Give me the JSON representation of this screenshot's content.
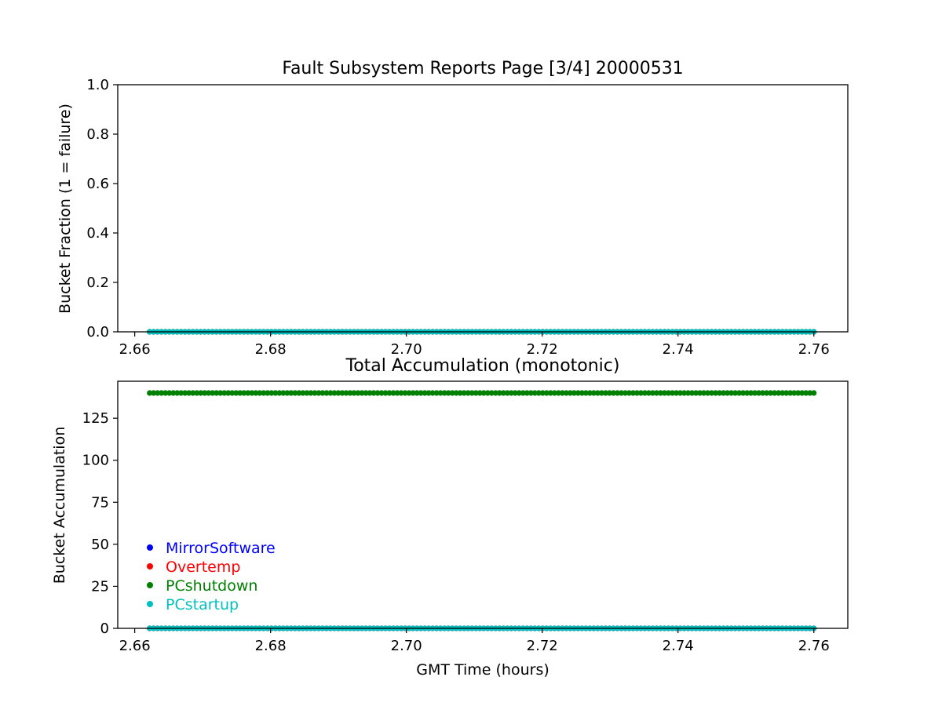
{
  "chart_data": [
    {
      "type": "scatter",
      "title": "Fault Subsystem Reports Page [3/4] 20000531",
      "xlabel": "",
      "ylabel": "Bucket Fraction (1 = failure)",
      "xlim": [
        2.6575,
        2.765
      ],
      "ylim": [
        0,
        1.0
      ],
      "xticks": [
        2.66,
        2.68,
        2.7,
        2.72,
        2.74,
        2.76
      ],
      "xtick_labels": [
        "2.66",
        "2.68",
        "2.70",
        "2.72",
        "2.74",
        "2.76"
      ],
      "yticks": [
        0,
        0.2,
        0.4,
        0.6,
        0.8,
        1.0
      ],
      "ytick_labels": [
        "0.0",
        "0.2",
        "0.4",
        "0.6",
        "0.8",
        "1.0"
      ],
      "grid": false,
      "x_range": [
        2.6622,
        2.76
      ],
      "series": [
        {
          "name": "MirrorSoftware",
          "color": "#0000ff",
          "value": 0
        },
        {
          "name": "Overtemp",
          "color": "#ff0000",
          "value": 0
        },
        {
          "name": "PCshutdown",
          "color": "#008000",
          "value": 0
        },
        {
          "name": "PCstartup",
          "color": "#00bfbf",
          "value": 0
        }
      ]
    },
    {
      "type": "scatter",
      "title": "Total Accumulation (monotonic)",
      "xlabel": "GMT Time (hours)",
      "ylabel": "Bucket Accumulation",
      "xlim": [
        2.6575,
        2.765
      ],
      "ylim": [
        0,
        147
      ],
      "xticks": [
        2.66,
        2.68,
        2.7,
        2.72,
        2.74,
        2.76
      ],
      "xtick_labels": [
        "2.66",
        "2.68",
        "2.70",
        "2.72",
        "2.74",
        "2.76"
      ],
      "yticks": [
        0,
        25,
        50,
        75,
        100,
        125
      ],
      "ytick_labels": [
        "0",
        "25",
        "50",
        "75",
        "100",
        "125"
      ],
      "grid": false,
      "legend_position": "lower-left",
      "x_range": [
        2.6622,
        2.76
      ],
      "series": [
        {
          "name": "MirrorSoftware",
          "color": "#0000ff",
          "value": 0
        },
        {
          "name": "Overtemp",
          "color": "#ff0000",
          "value": 0
        },
        {
          "name": "PCshutdown",
          "color": "#008000",
          "value": 140
        },
        {
          "name": "PCstartup",
          "color": "#00bfbf",
          "value": 0
        }
      ]
    }
  ]
}
